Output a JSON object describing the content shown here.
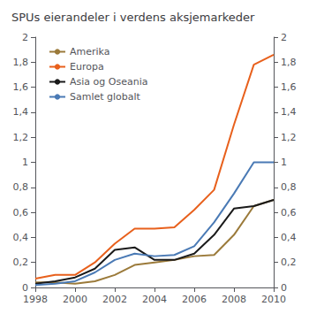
{
  "chart_data": {
    "type": "line",
    "title": "SPUs eierandeler i verdens aksjemarkeder",
    "x": [
      1998,
      1999,
      2000,
      2001,
      2002,
      2003,
      2004,
      2005,
      2006,
      2007,
      2008,
      2009,
      2010
    ],
    "series": [
      {
        "name": "Amerika",
        "color": "#9B7A3A",
        "values": [
          0.04,
          0.04,
          0.03,
          0.05,
          0.1,
          0.18,
          0.2,
          0.22,
          0.25,
          0.26,
          0.42,
          0.65,
          0.7
        ]
      },
      {
        "name": "Europa",
        "color": "#E8601C",
        "values": [
          0.07,
          0.1,
          0.1,
          0.2,
          0.35,
          0.47,
          0.47,
          0.48,
          0.62,
          0.78,
          1.3,
          1.78,
          1.86
        ]
      },
      {
        "name": "Asia og Oseania",
        "color": "#1A1A1A",
        "values": [
          0.03,
          0.05,
          0.08,
          0.15,
          0.3,
          0.32,
          0.22,
          0.22,
          0.27,
          0.42,
          0.63,
          0.65,
          0.7
        ]
      },
      {
        "name": "Samlet globalt",
        "color": "#4A7AB5",
        "values": [
          0.02,
          0.03,
          0.05,
          0.12,
          0.22,
          0.27,
          0.25,
          0.26,
          0.33,
          0.52,
          0.75,
          1.0,
          1.0
        ]
      }
    ],
    "xlim": [
      1998,
      2010
    ],
    "xticks": [
      1998,
      2000,
      2002,
      2004,
      2006,
      2008,
      2010
    ],
    "ylim": [
      0,
      2.0
    ],
    "yticks": [
      0,
      {
        "value": 0.2,
        "label": "0,2"
      },
      {
        "value": 0.4,
        "label": "0,4"
      },
      {
        "value": 0.6,
        "label": "0,6"
      },
      {
        "value": 0.8,
        "label": "0,8"
      },
      1,
      {
        "value": 1.2,
        "label": "1,2"
      },
      {
        "value": 1.4,
        "label": "1,4"
      },
      {
        "value": 1.6,
        "label": "1,6"
      },
      {
        "value": 1.8,
        "label": "1,8"
      },
      2
    ],
    "y2lim": [
      0,
      2.0
    ],
    "y2ticks": [
      0,
      {
        "value": 0.2,
        "label": "0,2"
      },
      {
        "value": 0.4,
        "label": "0,4"
      },
      {
        "value": 0.6,
        "label": "0,6"
      },
      {
        "value": 0.8,
        "label": "0,8"
      },
      1,
      {
        "value": 1.2,
        "label": "1,2"
      },
      {
        "value": 1.4,
        "label": "1,4"
      },
      {
        "value": 1.6,
        "label": "1,6"
      },
      {
        "value": 1.8,
        "label": "1,8"
      },
      2
    ],
    "grid": false,
    "legend": "upper left"
  }
}
